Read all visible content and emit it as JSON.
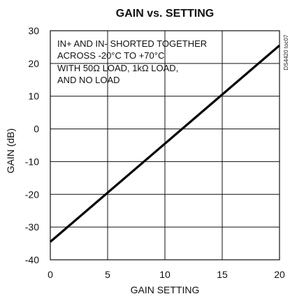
{
  "chart_data": {
    "type": "line",
    "title": "GAIN vs. SETTING",
    "xlabel": "GAIN SETTING",
    "ylabel": "GAIN (dB)",
    "xlim": [
      0,
      20
    ],
    "ylim": [
      -40,
      30
    ],
    "xticks": [
      0,
      5,
      10,
      15,
      20
    ],
    "yticks": [
      -40,
      -30,
      -20,
      -10,
      0,
      10,
      20,
      30
    ],
    "xtick_labels": [
      "0",
      "5",
      "10",
      "15",
      "20"
    ],
    "ytick_labels": [
      "-40",
      "-30",
      "-20",
      "-10",
      "0",
      "10",
      "20",
      "30"
    ],
    "grid": true,
    "annotation_lines": [
      "IN+ AND IN- SHORTED TOGETHER",
      "ACROSS -20°C TO +70°C",
      "WITH 50Ω LOAD, 1kΩ LOAD,",
      "AND NO LOAD"
    ],
    "figure_id": "DS4420 toc07",
    "series": [
      {
        "x": [
          0,
          5,
          10,
          15,
          20
        ],
        "y": [
          -34.5,
          -19.5,
          -4.5,
          10.5,
          25.5
        ]
      }
    ],
    "line_color": "#000000"
  }
}
